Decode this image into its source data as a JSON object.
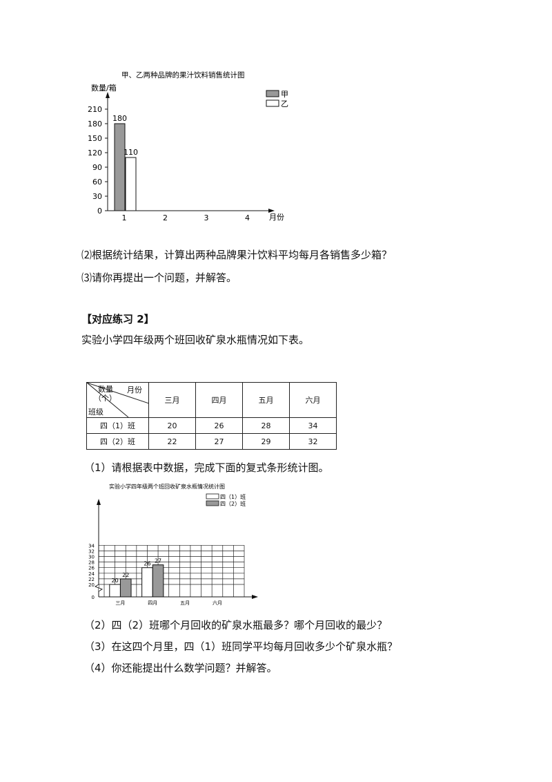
{
  "chart1": {
    "chart_data": {
      "type": "bar",
      "title": "甲、乙两种品牌的果汁饮料销售统计图",
      "ylabel": "数量/箱",
      "xlabel": "月份",
      "categories": [
        "1",
        "2",
        "3",
        "4"
      ],
      "series": [
        {
          "name": "甲",
          "values": [
            180,
            null,
            null,
            null
          ],
          "color": "#999999"
        },
        {
          "name": "乙",
          "values": [
            110,
            null,
            null,
            null
          ],
          "color": "#ffffff"
        }
      ],
      "yticks": [
        "0",
        "30",
        "60",
        "90",
        "120",
        "150",
        "180",
        "210"
      ],
      "ylim": [
        0,
        210
      ],
      "legend": "top-right"
    }
  },
  "q1": {
    "p2": "⑵根据统计结果，计算出两种品牌果汁饮料平均每月各销售多少箱？",
    "p3": "⑶请你再提出一个问题，并解答。"
  },
  "section2": {
    "heading": "【对应练习 2】",
    "intro": "实验小学四年级两个班回收矿泉水瓶情况如下表。"
  },
  "table": {
    "corner_top": "数量",
    "corner_unit": "（个）",
    "corner_right": "月份",
    "corner_bottom": "班级",
    "columns": [
      "三月",
      "四月",
      "五月",
      "六月"
    ],
    "rows": [
      {
        "label": "四（1）班",
        "values": [
          "20",
          "26",
          "28",
          "34"
        ]
      },
      {
        "label": "四（2）班",
        "values": [
          "22",
          "27",
          "29",
          "32"
        ]
      }
    ]
  },
  "task1": "（1）请根据表中数据，完成下面的复式条形统计图。",
  "chart2": {
    "chart_data": {
      "type": "bar",
      "title": "实验小学四年级两个班回收矿泉水瓶情况统计图",
      "categories": [
        "三月",
        "四月",
        "五月",
        "六月"
      ],
      "series": [
        {
          "name": "四（1）班",
          "values": [
            20,
            26,
            null,
            null
          ],
          "color": "#ffffff"
        },
        {
          "name": "四（2）班",
          "values": [
            22,
            27,
            null,
            null
          ],
          "color": "#999999"
        }
      ],
      "yticks": [
        "0",
        "20",
        "22",
        "24",
        "26",
        "28",
        "30",
        "32",
        "34"
      ],
      "ylim": [
        20,
        34
      ],
      "axis_break": true,
      "grid": true,
      "legend": "top-right"
    }
  },
  "questions": [
    "（2）四（2）班哪个月回收的矿泉水瓶最多？哪个月回收的最少？",
    "（3）在这四个月里，四（1）班同学平均每月回收多少个矿泉水瓶？",
    "（4）你还能提出什么数学问题？并解答。"
  ]
}
